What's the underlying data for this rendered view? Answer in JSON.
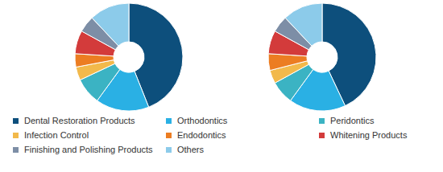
{
  "chart_data": [
    {
      "type": "pie",
      "legend": "bottom",
      "categories": [
        "Dental Restoration Products",
        "Orthodontics",
        "Peridontics",
        "Infection Control",
        "Endodontics",
        "Whitening Products",
        "Finishing and Polishing Products",
        "Others"
      ],
      "values": [
        44,
        16,
        8,
        4,
        4,
        7,
        5,
        12
      ],
      "colors": [
        "#0d4f7c",
        "#2ab0e4",
        "#3bb3c3",
        "#f2b94b",
        "#ec7d22",
        "#d33b3b",
        "#7d8ea6",
        "#8ccbea"
      ]
    },
    {
      "type": "pie",
      "legend": "bottom",
      "categories": [
        "Dental Restoration Products",
        "Orthodontics",
        "Peridontics",
        "Infection Control",
        "Endodontics",
        "Whitening Products",
        "Finishing and Polishing Products",
        "Others"
      ],
      "values": [
        43,
        17,
        7,
        4,
        5,
        7,
        5,
        12
      ],
      "colors": [
        "#0d4f7c",
        "#2ab0e4",
        "#3bb3c3",
        "#f2b94b",
        "#ec7d22",
        "#d33b3b",
        "#7d8ea6",
        "#8ccbea"
      ]
    }
  ]
}
